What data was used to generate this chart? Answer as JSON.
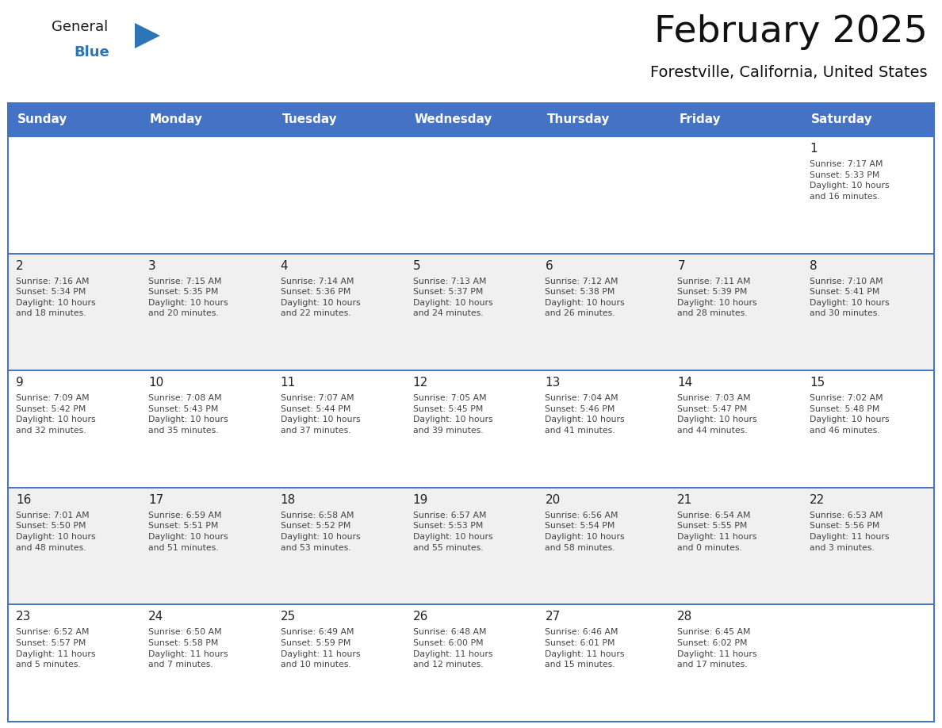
{
  "title": "February 2025",
  "subtitle": "Forestville, California, United States",
  "header_bg_color": "#4472C4",
  "header_text_color": "#FFFFFF",
  "cell_bg_even": "#FFFFFF",
  "cell_bg_odd": "#F0F0F0",
  "cell_text_color": "#444444",
  "day_number_color": "#222222",
  "grid_line_color": "#4472C4",
  "days_of_week": [
    "Sunday",
    "Monday",
    "Tuesday",
    "Wednesday",
    "Thursday",
    "Friday",
    "Saturday"
  ],
  "calendar_data": [
    [
      "",
      "",
      "",
      "",
      "",
      "",
      "1\nSunrise: 7:17 AM\nSunset: 5:33 PM\nDaylight: 10 hours\nand 16 minutes."
    ],
    [
      "2\nSunrise: 7:16 AM\nSunset: 5:34 PM\nDaylight: 10 hours\nand 18 minutes.",
      "3\nSunrise: 7:15 AM\nSunset: 5:35 PM\nDaylight: 10 hours\nand 20 minutes.",
      "4\nSunrise: 7:14 AM\nSunset: 5:36 PM\nDaylight: 10 hours\nand 22 minutes.",
      "5\nSunrise: 7:13 AM\nSunset: 5:37 PM\nDaylight: 10 hours\nand 24 minutes.",
      "6\nSunrise: 7:12 AM\nSunset: 5:38 PM\nDaylight: 10 hours\nand 26 minutes.",
      "7\nSunrise: 7:11 AM\nSunset: 5:39 PM\nDaylight: 10 hours\nand 28 minutes.",
      "8\nSunrise: 7:10 AM\nSunset: 5:41 PM\nDaylight: 10 hours\nand 30 minutes."
    ],
    [
      "9\nSunrise: 7:09 AM\nSunset: 5:42 PM\nDaylight: 10 hours\nand 32 minutes.",
      "10\nSunrise: 7:08 AM\nSunset: 5:43 PM\nDaylight: 10 hours\nand 35 minutes.",
      "11\nSunrise: 7:07 AM\nSunset: 5:44 PM\nDaylight: 10 hours\nand 37 minutes.",
      "12\nSunrise: 7:05 AM\nSunset: 5:45 PM\nDaylight: 10 hours\nand 39 minutes.",
      "13\nSunrise: 7:04 AM\nSunset: 5:46 PM\nDaylight: 10 hours\nand 41 minutes.",
      "14\nSunrise: 7:03 AM\nSunset: 5:47 PM\nDaylight: 10 hours\nand 44 minutes.",
      "15\nSunrise: 7:02 AM\nSunset: 5:48 PM\nDaylight: 10 hours\nand 46 minutes."
    ],
    [
      "16\nSunrise: 7:01 AM\nSunset: 5:50 PM\nDaylight: 10 hours\nand 48 minutes.",
      "17\nSunrise: 6:59 AM\nSunset: 5:51 PM\nDaylight: 10 hours\nand 51 minutes.",
      "18\nSunrise: 6:58 AM\nSunset: 5:52 PM\nDaylight: 10 hours\nand 53 minutes.",
      "19\nSunrise: 6:57 AM\nSunset: 5:53 PM\nDaylight: 10 hours\nand 55 minutes.",
      "20\nSunrise: 6:56 AM\nSunset: 5:54 PM\nDaylight: 10 hours\nand 58 minutes.",
      "21\nSunrise: 6:54 AM\nSunset: 5:55 PM\nDaylight: 11 hours\nand 0 minutes.",
      "22\nSunrise: 6:53 AM\nSunset: 5:56 PM\nDaylight: 11 hours\nand 3 minutes."
    ],
    [
      "23\nSunrise: 6:52 AM\nSunset: 5:57 PM\nDaylight: 11 hours\nand 5 minutes.",
      "24\nSunrise: 6:50 AM\nSunset: 5:58 PM\nDaylight: 11 hours\nand 7 minutes.",
      "25\nSunrise: 6:49 AM\nSunset: 5:59 PM\nDaylight: 11 hours\nand 10 minutes.",
      "26\nSunrise: 6:48 AM\nSunset: 6:00 PM\nDaylight: 11 hours\nand 12 minutes.",
      "27\nSunrise: 6:46 AM\nSunset: 6:01 PM\nDaylight: 11 hours\nand 15 minutes.",
      "28\nSunrise: 6:45 AM\nSunset: 6:02 PM\nDaylight: 11 hours\nand 17 minutes.",
      ""
    ]
  ],
  "logo_triangle_color": "#2E75B6",
  "logo_general_color": "#1a1a1a",
  "logo_blue_color": "#2E75B6",
  "fig_width": 11.88,
  "fig_height": 9.18,
  "fig_dpi": 100
}
